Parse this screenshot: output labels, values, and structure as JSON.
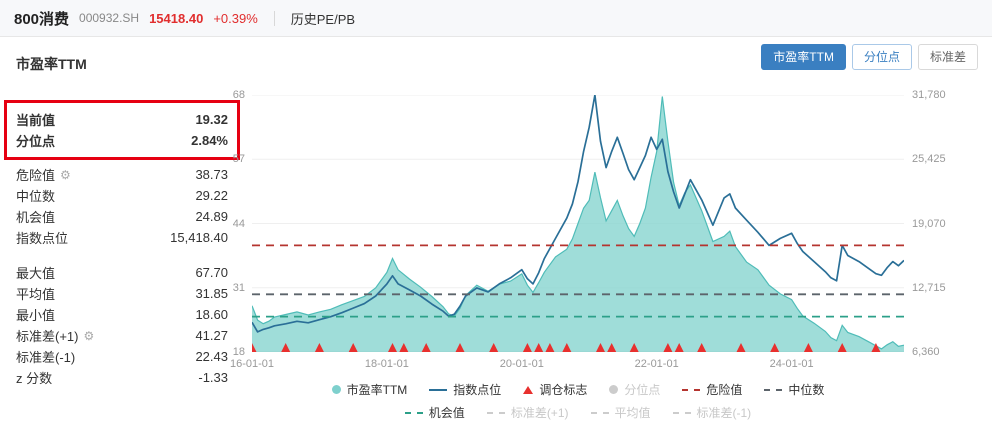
{
  "header": {
    "title": "800消费",
    "code": "000932.SH",
    "price": "15418.40",
    "change": "+0.39%",
    "nav": "历史PE/PB"
  },
  "panel": {
    "title": "市盈率TTM",
    "highlighted": [
      {
        "label": "当前值",
        "value": "19.32"
      },
      {
        "label": "分位点",
        "value": "2.84%"
      }
    ],
    "rows": [
      {
        "label": "危险值",
        "value": "38.73",
        "gear": true
      },
      {
        "label": "中位数",
        "value": "29.22"
      },
      {
        "label": "机会值",
        "value": "24.89"
      },
      {
        "label": "指数点位",
        "value": "15,418.40"
      }
    ],
    "rows2": [
      {
        "label": "最大值",
        "value": "67.70"
      },
      {
        "label": "平均值",
        "value": "31.85"
      },
      {
        "label": "最小值",
        "value": "18.60"
      },
      {
        "label": "标准差(+1)",
        "value": "41.27",
        "gear": true
      },
      {
        "label": "标准差(-1)",
        "value": "22.43"
      },
      {
        "label": "z 分数",
        "value": "-1.33"
      }
    ]
  },
  "tabs": [
    {
      "label": "市盈率TTM",
      "active": true,
      "accent": false
    },
    {
      "label": "分位点",
      "active": false,
      "accent": true
    },
    {
      "label": "标准差",
      "active": false,
      "accent": false
    }
  ],
  "icons": {
    "gear": "⚙"
  },
  "colors": {
    "teal_fill": "#87d4d0",
    "teal_edge": "#4fbcb8",
    "index_line": "#2a6f97",
    "marker_red": "#e8302e",
    "accent_blue": "#3a7fc1",
    "text_red": "#e12e2e"
  },
  "chart_data": {
    "type": "area",
    "x_unit": "months_since_2016-01-01",
    "x_max": 116,
    "x_ticks": [
      {
        "m": 0,
        "label": "16-01-01"
      },
      {
        "m": 24,
        "label": "18-01-01"
      },
      {
        "m": 48,
        "label": "20-01-01"
      },
      {
        "m": 72,
        "label": "22-01-01"
      },
      {
        "m": 96,
        "label": "24-01-01"
      }
    ],
    "left_axis": {
      "series": "市盈率TTM",
      "min": 18,
      "max": 68,
      "labels": [
        "68",
        "57",
        "44",
        "31",
        "18"
      ]
    },
    "right_axis": {
      "series": "指数点位",
      "min": 6360,
      "max": 31780,
      "labels": [
        "31,780",
        "25,425",
        "19,070",
        "12,715",
        "6,360"
      ]
    },
    "pe_ttm": [
      [
        0,
        27.0
      ],
      [
        1,
        24.2
      ],
      [
        2,
        23.5
      ],
      [
        3,
        24.0
      ],
      [
        4,
        24.8
      ],
      [
        6,
        25.3
      ],
      [
        8,
        25.8
      ],
      [
        10,
        25.2
      ],
      [
        12,
        25.8
      ],
      [
        14,
        26.3
      ],
      [
        16,
        27.2
      ],
      [
        18,
        28.0
      ],
      [
        20,
        28.8
      ],
      [
        22,
        30.5
      ],
      [
        24,
        33.5
      ],
      [
        25,
        36.2
      ],
      [
        26,
        34.0
      ],
      [
        28,
        32.2
      ],
      [
        30,
        30.6
      ],
      [
        32,
        28.8
      ],
      [
        34,
        26.8
      ],
      [
        35,
        25.4
      ],
      [
        36,
        25.0
      ],
      [
        37,
        26.5
      ],
      [
        38,
        29.0
      ],
      [
        40,
        31.0
      ],
      [
        42,
        29.8
      ],
      [
        44,
        31.2
      ],
      [
        46,
        31.8
      ],
      [
        48,
        33.2
      ],
      [
        49,
        31.0
      ],
      [
        50,
        29.6
      ],
      [
        51,
        31.5
      ],
      [
        52,
        33.5
      ],
      [
        54,
        36.5
      ],
      [
        56,
        38.0
      ],
      [
        57,
        40.0
      ],
      [
        58,
        43.0
      ],
      [
        59,
        46.0
      ],
      [
        60,
        47.5
      ],
      [
        61,
        53.0
      ],
      [
        62,
        48.0
      ],
      [
        63,
        43.5
      ],
      [
        64,
        45.5
      ],
      [
        65,
        47.5
      ],
      [
        66,
        44.5
      ],
      [
        67,
        42.0
      ],
      [
        68,
        40.5
      ],
      [
        69,
        43.0
      ],
      [
        70,
        46.0
      ],
      [
        71,
        52.0
      ],
      [
        72,
        57.0
      ],
      [
        73,
        67.7
      ],
      [
        74,
        59.0
      ],
      [
        75,
        51.0
      ],
      [
        76,
        46.5
      ],
      [
        77,
        49.0
      ],
      [
        78,
        50.5
      ],
      [
        80,
        45.5
      ],
      [
        82,
        39.5
      ],
      [
        84,
        40.5
      ],
      [
        85,
        41.5
      ],
      [
        86,
        38.5
      ],
      [
        88,
        35.5
      ],
      [
        90,
        34.0
      ],
      [
        92,
        31.0
      ],
      [
        94,
        29.3
      ],
      [
        96,
        28.2
      ],
      [
        97,
        26.5
      ],
      [
        98,
        25.0
      ],
      [
        100,
        23.6
      ],
      [
        102,
        22.0
      ],
      [
        103,
        20.8
      ],
      [
        104,
        20.2
      ],
      [
        105,
        23.2
      ],
      [
        106,
        21.8
      ],
      [
        108,
        21.0
      ],
      [
        110,
        19.8
      ],
      [
        111,
        19.2
      ],
      [
        112,
        18.6
      ],
      [
        113,
        19.4
      ],
      [
        114,
        20.0
      ],
      [
        115,
        19.1
      ],
      [
        116,
        19.32
      ]
    ],
    "index_points": [
      [
        0,
        9300
      ],
      [
        1,
        8350
      ],
      [
        2,
        8600
      ],
      [
        3,
        8750
      ],
      [
        4,
        8950
      ],
      [
        6,
        9150
      ],
      [
        8,
        9400
      ],
      [
        10,
        9250
      ],
      [
        12,
        9550
      ],
      [
        14,
        9850
      ],
      [
        16,
        10250
      ],
      [
        18,
        10700
      ],
      [
        20,
        11150
      ],
      [
        22,
        11900
      ],
      [
        24,
        13100
      ],
      [
        25,
        13900
      ],
      [
        26,
        13100
      ],
      [
        28,
        12500
      ],
      [
        30,
        11900
      ],
      [
        32,
        11100
      ],
      [
        34,
        10400
      ],
      [
        35,
        9900
      ],
      [
        36,
        10100
      ],
      [
        37,
        10900
      ],
      [
        38,
        11900
      ],
      [
        40,
        12700
      ],
      [
        42,
        12300
      ],
      [
        44,
        13100
      ],
      [
        46,
        13700
      ],
      [
        48,
        14500
      ],
      [
        49,
        13600
      ],
      [
        50,
        13100
      ],
      [
        51,
        14200
      ],
      [
        52,
        15600
      ],
      [
        54,
        17600
      ],
      [
        56,
        19600
      ],
      [
        57,
        21000
      ],
      [
        58,
        23200
      ],
      [
        59,
        26200
      ],
      [
        60,
        28600
      ],
      [
        61,
        31780
      ],
      [
        62,
        27200
      ],
      [
        63,
        24600
      ],
      [
        64,
        26200
      ],
      [
        65,
        27600
      ],
      [
        66,
        26000
      ],
      [
        67,
        24400
      ],
      [
        68,
        23400
      ],
      [
        69,
        24600
      ],
      [
        70,
        25800
      ],
      [
        71,
        27600
      ],
      [
        72,
        26400
      ],
      [
        73,
        27400
      ],
      [
        74,
        24200
      ],
      [
        75,
        22200
      ],
      [
        76,
        20600
      ],
      [
        77,
        22000
      ],
      [
        78,
        23400
      ],
      [
        80,
        21400
      ],
      [
        82,
        18900
      ],
      [
        84,
        21600
      ],
      [
        85,
        22000
      ],
      [
        86,
        20600
      ],
      [
        88,
        19400
      ],
      [
        90,
        18200
      ],
      [
        92,
        16900
      ],
      [
        94,
        17600
      ],
      [
        96,
        18100
      ],
      [
        97,
        17100
      ],
      [
        98,
        16300
      ],
      [
        100,
        15300
      ],
      [
        102,
        14300
      ],
      [
        103,
        13700
      ],
      [
        104,
        13400
      ],
      [
        105,
        16900
      ],
      [
        106,
        15900
      ],
      [
        108,
        15300
      ],
      [
        110,
        14500
      ],
      [
        111,
        14100
      ],
      [
        112,
        13950
      ],
      [
        113,
        14700
      ],
      [
        114,
        15300
      ],
      [
        115,
        14900
      ],
      [
        116,
        15418
      ]
    ],
    "hlines": [
      {
        "id": "danger",
        "name": "危险值",
        "value": 38.73,
        "color": "#b5342f"
      },
      {
        "id": "median",
        "name": "中位数",
        "value": 29.22,
        "color": "#5c646b"
      },
      {
        "id": "opportunity",
        "name": "机会值",
        "value": 24.89,
        "color": "#2ca089"
      }
    ],
    "rebalance_marks_months": [
      0,
      6,
      12,
      18,
      25,
      27,
      31,
      37,
      43,
      49,
      51,
      53,
      56,
      62,
      64,
      68,
      74,
      76,
      80,
      87,
      93,
      99,
      105,
      111
    ],
    "legend": {
      "row1": [
        {
          "label": "市盈率TTM",
          "marker": "circle",
          "color": "#7ed0cd",
          "active": true
        },
        {
          "label": "指数点位",
          "marker": "line",
          "color": "#2a6f97",
          "active": true
        },
        {
          "label": "调仓标志",
          "marker": "triangle",
          "color": "#e8302e",
          "active": true
        },
        {
          "label": "分位点",
          "marker": "circle",
          "color": "#cccccc",
          "active": false
        },
        {
          "label": "危险值",
          "marker": "dash",
          "color": "#b5342f",
          "active": true
        },
        {
          "label": "中位数",
          "marker": "dash",
          "color": "#5c646b",
          "active": true
        }
      ],
      "row2": [
        {
          "label": "机会值",
          "marker": "dash",
          "color": "#2ca089",
          "active": true
        },
        {
          "label": "标准差(+1)",
          "marker": "dash",
          "color": "#cccccc",
          "active": false
        },
        {
          "label": "平均值",
          "marker": "dash",
          "color": "#cccccc",
          "active": false
        },
        {
          "label": "标准差(-1)",
          "marker": "dash",
          "color": "#cccccc",
          "active": false
        }
      ]
    }
  }
}
